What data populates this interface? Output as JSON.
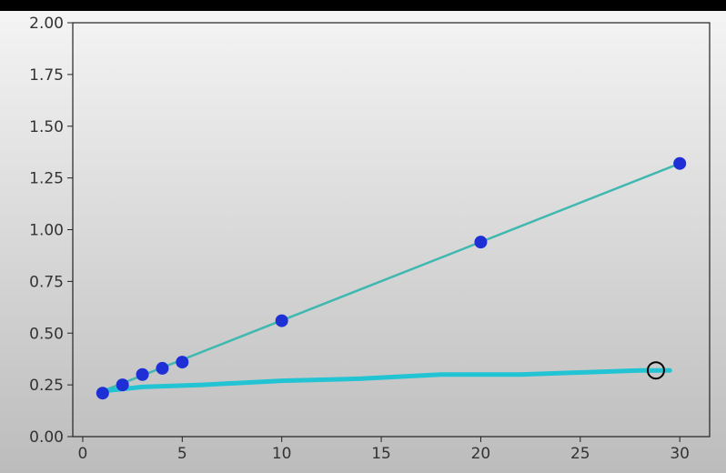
{
  "chart_data": {
    "type": "line",
    "title": "",
    "xlabel": "",
    "ylabel": "",
    "xlim": [
      -0.5,
      31.5
    ],
    "ylim": [
      0,
      2
    ],
    "grid": false,
    "x_ticks": [
      0,
      5,
      10,
      15,
      20,
      25,
      30
    ],
    "y_ticks": [
      0.0,
      0.25,
      0.5,
      0.75,
      1.0,
      1.25,
      1.5,
      1.75,
      2.0
    ],
    "x_tick_labels": [
      "0",
      "5",
      "10",
      "15",
      "20",
      "25",
      "30"
    ],
    "y_tick_labels": [
      "0.00",
      "0.25",
      "0.50",
      "0.75",
      "1.00",
      "1.25",
      "1.50",
      "1.75",
      "2.00"
    ],
    "series": [
      {
        "type": "scatter",
        "color": "#1f2fd6",
        "points": [
          {
            "x": 1,
            "y": 0.21
          },
          {
            "x": 2,
            "y": 0.25
          },
          {
            "x": 3,
            "y": 0.3
          },
          {
            "x": 4,
            "y": 0.33
          },
          {
            "x": 5,
            "y": 0.36
          },
          {
            "x": 10,
            "y": 0.56
          },
          {
            "x": 20,
            "y": 0.94
          },
          {
            "x": 30,
            "y": 1.32
          }
        ]
      },
      {
        "type": "line",
        "color": "#3fb8b0",
        "points": [
          {
            "x": 1,
            "y": 0.22
          },
          {
            "x": 30,
            "y": 1.32
          }
        ]
      },
      {
        "type": "line",
        "color": "#22c4d4",
        "points": [
          {
            "x": 1,
            "y": 0.22
          },
          {
            "x": 3,
            "y": 0.24
          },
          {
            "x": 6,
            "y": 0.25
          },
          {
            "x": 10,
            "y": 0.27
          },
          {
            "x": 14,
            "y": 0.28
          },
          {
            "x": 18,
            "y": 0.3
          },
          {
            "x": 22,
            "y": 0.3
          },
          {
            "x": 25,
            "y": 0.31
          },
          {
            "x": 28,
            "y": 0.32
          },
          {
            "x": 29.5,
            "y": 0.32
          }
        ]
      }
    ],
    "annotations": [
      {
        "type": "circle-marker",
        "x": 28.8,
        "y": 0.32,
        "color": "#000000"
      }
    ]
  }
}
